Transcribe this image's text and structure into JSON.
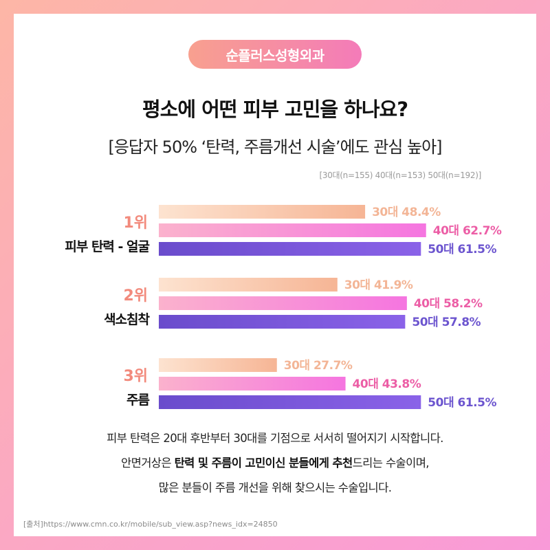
{
  "brand": "순플러스성형외과",
  "title": "평소에 어떤 피부 고민을 하나요?",
  "subtitle": "[응답자 50% ‘탄력, 주름개선 시술’에도 관심 높아]",
  "sample_note": "[30대(n=155)  40대(n=153)  50대(n=192)]",
  "chart_data": {
    "type": "bar",
    "orientation": "horizontal",
    "categories": [
      "피부 탄력 - 얼굴",
      "색소침착",
      "주름"
    ],
    "ranks": [
      "1위",
      "2위",
      "3위"
    ],
    "series": [
      {
        "name": "30대",
        "values": [
          48.4,
          41.9,
          27.7
        ],
        "color": "#f6b99a"
      },
      {
        "name": "40대",
        "values": [
          62.7,
          58.2,
          43.8
        ],
        "color": "#f574b9"
      },
      {
        "name": "50대",
        "values": [
          61.5,
          57.8,
          61.5
        ],
        "color": "#7456d8"
      }
    ],
    "label_colors": [
      "#f3b596",
      "#ec5ea6",
      "#6c55cf"
    ],
    "unit": "%",
    "xlim": [
      0,
      100
    ]
  },
  "description": {
    "line1": "피부 탄력은 20대 후반부터 30대를 기점으로 서서히 떨어지기 시작합니다.",
    "line2_pre": "안면거상은 ",
    "line2_bold1": "탄력 및 주름이 고민이신 분들에게 추천",
    "line2_post": "드리는 수술이며,",
    "line3": "많은 분들이 주름 개선을 위해 찾으시는 수술입니다."
  },
  "source": "[출처]https://www.cmn.co.kr/mobile/sub_view.asp?news_idx=24850"
}
